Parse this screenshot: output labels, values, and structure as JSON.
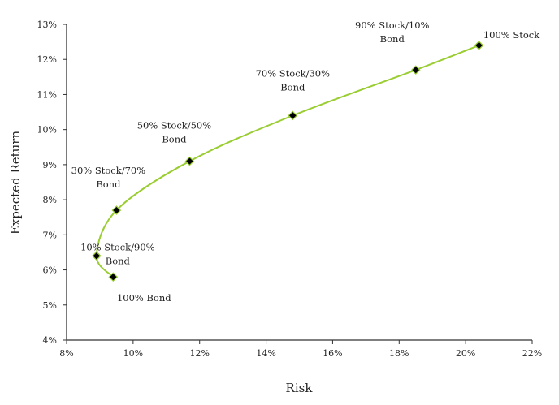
{
  "chart_data": {
    "type": "line",
    "title": "",
    "xlabel": "Risk",
    "ylabel": "Expected Return",
    "xlim": [
      8,
      22
    ],
    "ylim": [
      4,
      13
    ],
    "x_ticks": [
      "8%",
      "10%",
      "12%",
      "14%",
      "16%",
      "18%",
      "20%",
      "22%"
    ],
    "y_ticks": [
      "4%",
      "5%",
      "6%",
      "7%",
      "8%",
      "9%",
      "10%",
      "11%",
      "12%",
      "13%"
    ],
    "grid": false,
    "legend": "none",
    "series": [
      {
        "name": "Efficient frontier",
        "color": "#9acd32",
        "marker": "diamond",
        "points": [
          {
            "label": [
              "100% Bond"
            ],
            "x": 9.4,
            "y": 5.8
          },
          {
            "label": [
              "10% Stock/90%",
              "Bond"
            ],
            "x": 8.9,
            "y": 6.4
          },
          {
            "label": [
              "30% Stock/70%",
              "Bond"
            ],
            "x": 9.5,
            "y": 7.7
          },
          {
            "label": [
              "50% Stock/50%",
              "Bond"
            ],
            "x": 11.7,
            "y": 9.1
          },
          {
            "label": [
              "70% Stock/30%",
              "Bond"
            ],
            "x": 14.8,
            "y": 10.4
          },
          {
            "label": [
              "90% Stock/10%",
              "Bond"
            ],
            "x": 18.5,
            "y": 11.7
          },
          {
            "label": [
              "100% Stock"
            ],
            "x": 20.4,
            "y": 12.4
          }
        ]
      }
    ]
  }
}
